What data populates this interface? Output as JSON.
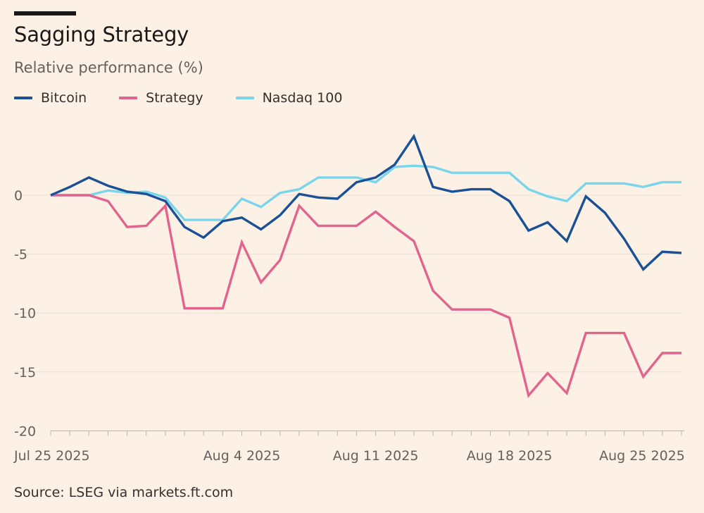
{
  "header": {
    "title": "Sagging Strategy",
    "subtitle": "Relative performance (%)"
  },
  "legend": [
    {
      "name": "Bitcoin",
      "color": "#1a5096"
    },
    {
      "name": "Strategy",
      "color": "#e2648c"
    },
    {
      "name": "Nasdaq 100",
      "color": "#79d5ec"
    }
  ],
  "footer": {
    "source": "Source: LSEG via markets.ft.com"
  },
  "chart_data": {
    "type": "line",
    "title": "Sagging Strategy",
    "ylabel": "Relative performance (%)",
    "xlabel": "",
    "ylim": [
      -20,
      5
    ],
    "yticks": [
      0,
      -5,
      -10,
      -15,
      -20
    ],
    "ytick_labels": [
      "0",
      "-5",
      "-10",
      "-15",
      "-20"
    ],
    "xlim": [
      "2025-07-25",
      "2025-08-27"
    ],
    "xticks": [
      {
        "date": "2025-07-25",
        "label": "Jul 25 2025"
      },
      {
        "date": "2025-08-04",
        "label": "Aug 4 2025"
      },
      {
        "date": "2025-08-11",
        "label": "Aug 11 2025"
      },
      {
        "date": "2025-08-18",
        "label": "Aug 18 2025"
      },
      {
        "date": "2025-08-25",
        "label": "Aug 25 2025"
      }
    ],
    "grid": true,
    "legend_position": "top-left",
    "x": [
      "2025-07-25",
      "2025-07-26",
      "2025-07-27",
      "2025-07-28",
      "2025-07-29",
      "2025-07-30",
      "2025-07-31",
      "2025-08-01",
      "2025-08-02",
      "2025-08-03",
      "2025-08-04",
      "2025-08-05",
      "2025-08-06",
      "2025-08-07",
      "2025-08-08",
      "2025-08-09",
      "2025-08-10",
      "2025-08-11",
      "2025-08-12",
      "2025-08-13",
      "2025-08-14",
      "2025-08-15",
      "2025-08-16",
      "2025-08-17",
      "2025-08-18",
      "2025-08-19",
      "2025-08-20",
      "2025-08-21",
      "2025-08-22",
      "2025-08-23",
      "2025-08-24",
      "2025-08-25",
      "2025-08-26",
      "2025-08-27"
    ],
    "series": [
      {
        "name": "Bitcoin",
        "color": "#1a5096",
        "values": [
          0.0,
          0.7,
          1.5,
          0.8,
          0.3,
          0.1,
          -0.5,
          -2.7,
          -3.6,
          -2.2,
          -1.9,
          -2.9,
          -1.7,
          0.1,
          -0.2,
          -0.3,
          1.1,
          1.5,
          2.6,
          5.0,
          0.7,
          0.3,
          0.5,
          0.5,
          -0.5,
          -3.0,
          -2.3,
          -3.9,
          -0.1,
          -1.5,
          -3.7,
          -6.3,
          -4.8,
          -4.9
        ]
      },
      {
        "name": "Strategy",
        "color": "#e2648c",
        "values": [
          0.0,
          0.0,
          0.0,
          -0.5,
          -2.7,
          -2.6,
          -0.9,
          -9.6,
          -9.6,
          -9.6,
          -4.0,
          -7.4,
          -5.5,
          -0.9,
          -2.6,
          -2.6,
          -2.6,
          -1.4,
          -2.7,
          -3.9,
          -8.1,
          -9.7,
          -9.7,
          -9.7,
          -10.4,
          -17.0,
          -15.1,
          -16.8,
          -11.7,
          -11.7,
          -11.7,
          -15.4,
          -13.4,
          -13.4
        ]
      },
      {
        "name": "Nasdaq 100",
        "color": "#79d5ec",
        "values": [
          0.0,
          0.0,
          0.0,
          0.4,
          0.2,
          0.3,
          -0.2,
          -2.1,
          -2.1,
          -2.1,
          -0.3,
          -1.0,
          0.2,
          0.5,
          1.5,
          1.5,
          1.5,
          1.1,
          2.4,
          2.5,
          2.4,
          1.9,
          1.9,
          1.9,
          1.9,
          0.5,
          -0.1,
          -0.5,
          1.0,
          1.0,
          1.0,
          0.7,
          1.1,
          1.1
        ]
      }
    ]
  }
}
